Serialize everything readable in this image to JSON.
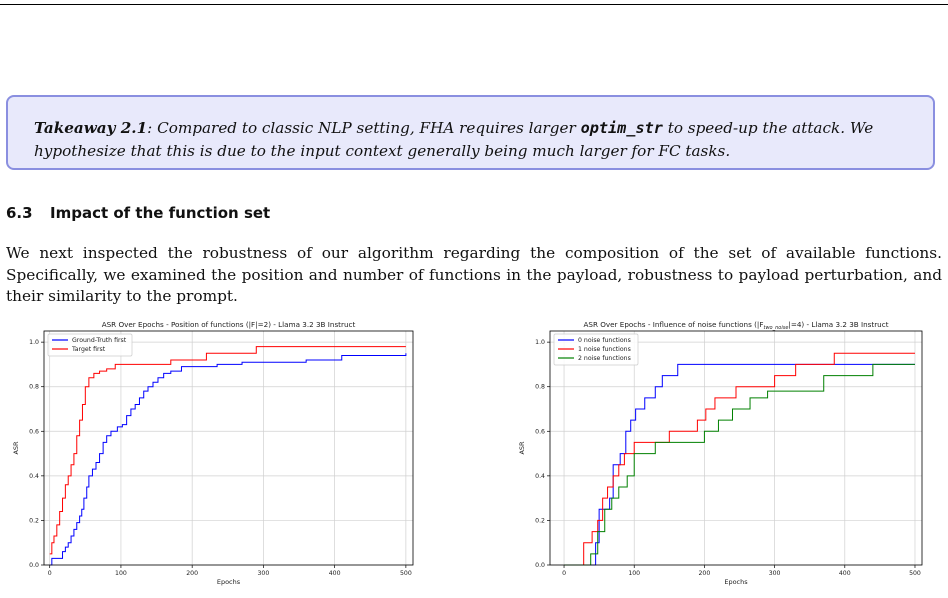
{
  "takeaway": {
    "title": "Takeaway 2.1",
    "text_a": ": Compared to classic NLP setting, FHA requires larger ",
    "code": "optim_str",
    "text_b": " to speed-up the attack. We hypothesize that this is due to the input context generally being much larger for FC tasks."
  },
  "section": {
    "number": "6.3",
    "title": "Impact of the function set",
    "paragraph": "We next inspected the robustness of our algorithm regarding the composition of the set of available functions. Specifically, we examined the position and number of functions in the payload, robustness to payload perturbation, and their similarity to the prompt."
  },
  "chart_data": [
    {
      "type": "line",
      "title": "ASR Over Epochs - Position of functions (|F|=2) - Llama 3.2 3B Instruct",
      "xlabel": "Epochs",
      "ylabel": "ASR",
      "xlim": [
        -8,
        510
      ],
      "ylim": [
        0,
        1.05
      ],
      "xticks": [
        0,
        100,
        200,
        300,
        400,
        500
      ],
      "yticks": [
        0.0,
        0.2,
        0.4,
        0.6,
        0.8,
        1.0
      ],
      "grid": true,
      "legend": "top-left",
      "series": [
        {
          "name": "Ground-Truth first",
          "color": "#0000ff",
          "points": [
            [
              0,
              0
            ],
            [
              3,
              0.03
            ],
            [
              18,
              0.06
            ],
            [
              22,
              0.08
            ],
            [
              26,
              0.1
            ],
            [
              30,
              0.13
            ],
            [
              34,
              0.16
            ],
            [
              38,
              0.19
            ],
            [
              42,
              0.22
            ],
            [
              45,
              0.25
            ],
            [
              48,
              0.3
            ],
            [
              52,
              0.35
            ],
            [
              55,
              0.4
            ],
            [
              60,
              0.43
            ],
            [
              65,
              0.46
            ],
            [
              70,
              0.5
            ],
            [
              75,
              0.55
            ],
            [
              80,
              0.58
            ],
            [
              86,
              0.6
            ],
            [
              95,
              0.62
            ],
            [
              102,
              0.63
            ],
            [
              108,
              0.67
            ],
            [
              114,
              0.7
            ],
            [
              120,
              0.72
            ],
            [
              126,
              0.75
            ],
            [
              132,
              0.78
            ],
            [
              138,
              0.8
            ],
            [
              145,
              0.82
            ],
            [
              152,
              0.84
            ],
            [
              160,
              0.86
            ],
            [
              170,
              0.87
            ],
            [
              185,
              0.89
            ],
            [
              235,
              0.9
            ],
            [
              270,
              0.91
            ],
            [
              300,
              0.91
            ],
            [
              360,
              0.92
            ],
            [
              410,
              0.94
            ],
            [
              500,
              0.95
            ]
          ]
        },
        {
          "name": "Target first",
          "color": "#ff0000",
          "points": [
            [
              0,
              0.05
            ],
            [
              3,
              0.1
            ],
            [
              6,
              0.13
            ],
            [
              10,
              0.18
            ],
            [
              14,
              0.24
            ],
            [
              18,
              0.3
            ],
            [
              22,
              0.36
            ],
            [
              26,
              0.4
            ],
            [
              30,
              0.45
            ],
            [
              34,
              0.5
            ],
            [
              38,
              0.58
            ],
            [
              42,
              0.65
            ],
            [
              46,
              0.72
            ],
            [
              50,
              0.8
            ],
            [
              55,
              0.84
            ],
            [
              62,
              0.86
            ],
            [
              70,
              0.87
            ],
            [
              80,
              0.88
            ],
            [
              92,
              0.9
            ],
            [
              110,
              0.9
            ],
            [
              170,
              0.92
            ],
            [
              220,
              0.95
            ],
            [
              290,
              0.98
            ],
            [
              500,
              0.98
            ]
          ]
        }
      ]
    },
    {
      "type": "line",
      "title_prefix": "ASR Over Epochs - Influence of noise functions (|F",
      "title_sub": "two_noise",
      "title_suffix": "|=4) - Llama 3.2 3B Instruct",
      "xlabel": "Epochs",
      "ylabel": "ASR",
      "xlim": [
        -20,
        510
      ],
      "ylim": [
        0,
        1.05
      ],
      "xticks": [
        0,
        100,
        200,
        300,
        400,
        500
      ],
      "yticks": [
        0.0,
        0.2,
        0.4,
        0.6,
        0.8,
        1.0
      ],
      "grid": true,
      "legend": "top-left",
      "series": [
        {
          "name": "0 noise functions",
          "color": "#0000ff",
          "points": [
            [
              0,
              0
            ],
            [
              45,
              0.1
            ],
            [
              50,
              0.25
            ],
            [
              65,
              0.3
            ],
            [
              70,
              0.45
            ],
            [
              80,
              0.5
            ],
            [
              88,
              0.6
            ],
            [
              95,
              0.65
            ],
            [
              102,
              0.7
            ],
            [
              115,
              0.75
            ],
            [
              130,
              0.8
            ],
            [
              140,
              0.85
            ],
            [
              162,
              0.9
            ],
            [
              500,
              0.9
            ]
          ]
        },
        {
          "name": "1 noise functions",
          "color": "#ff0000",
          "points": [
            [
              0,
              0
            ],
            [
              28,
              0.1
            ],
            [
              40,
              0.15
            ],
            [
              48,
              0.2
            ],
            [
              55,
              0.3
            ],
            [
              62,
              0.35
            ],
            [
              70,
              0.4
            ],
            [
              78,
              0.45
            ],
            [
              86,
              0.5
            ],
            [
              100,
              0.55
            ],
            [
              150,
              0.6
            ],
            [
              190,
              0.65
            ],
            [
              202,
              0.7
            ],
            [
              215,
              0.75
            ],
            [
              245,
              0.8
            ],
            [
              300,
              0.85
            ],
            [
              330,
              0.9
            ],
            [
              385,
              0.95
            ],
            [
              500,
              0.95
            ]
          ]
        },
        {
          "name": "2 noise functions",
          "color": "#008000",
          "points": [
            [
              0,
              0
            ],
            [
              38,
              0.05
            ],
            [
              48,
              0.15
            ],
            [
              58,
              0.25
            ],
            [
              68,
              0.3
            ],
            [
              78,
              0.35
            ],
            [
              90,
              0.4
            ],
            [
              100,
              0.5
            ],
            [
              130,
              0.55
            ],
            [
              200,
              0.6
            ],
            [
              220,
              0.65
            ],
            [
              240,
              0.7
            ],
            [
              265,
              0.75
            ],
            [
              290,
              0.78
            ],
            [
              370,
              0.85
            ],
            [
              440,
              0.9
            ],
            [
              500,
              0.9
            ]
          ]
        }
      ]
    }
  ]
}
